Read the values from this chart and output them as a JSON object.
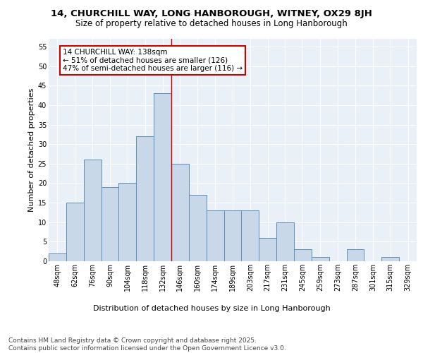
{
  "title": "14, CHURCHILL WAY, LONG HANBOROUGH, WITNEY, OX29 8JH",
  "subtitle": "Size of property relative to detached houses in Long Hanborough",
  "xlabel": "Distribution of detached houses by size in Long Hanborough",
  "ylabel": "Number of detached properties",
  "bar_labels": [
    "48sqm",
    "62sqm",
    "76sqm",
    "90sqm",
    "104sqm",
    "118sqm",
    "132sqm",
    "146sqm",
    "160sqm",
    "174sqm",
    "189sqm",
    "203sqm",
    "217sqm",
    "231sqm",
    "245sqm",
    "259sqm",
    "273sqm",
    "287sqm",
    "301sqm",
    "315sqm",
    "329sqm"
  ],
  "bar_values": [
    2,
    15,
    26,
    19,
    20,
    32,
    43,
    25,
    17,
    13,
    13,
    13,
    6,
    10,
    3,
    1,
    0,
    3,
    0,
    1,
    0
  ],
  "bar_color": "#c8d8e8",
  "bar_edge_color": "#5b8db8",
  "annotation_title": "14 CHURCHILL WAY: 138sqm",
  "annotation_line1": "← 51% of detached houses are smaller (126)",
  "annotation_line2": "47% of semi-detached houses are larger (116) →",
  "annotation_box_color": "#ffffff",
  "annotation_box_edge_color": "#cc0000",
  "vline_x": 6.5,
  "vline_color": "#cc0000",
  "ylim": [
    0,
    57
  ],
  "yticks": [
    0,
    5,
    10,
    15,
    20,
    25,
    30,
    35,
    40,
    45,
    50,
    55
  ],
  "background_color": "#eaf0f8",
  "footer_line1": "Contains HM Land Registry data © Crown copyright and database right 2025.",
  "footer_line2": "Contains public sector information licensed under the Open Government Licence v3.0.",
  "title_fontsize": 9.5,
  "subtitle_fontsize": 8.5,
  "xlabel_fontsize": 8,
  "ylabel_fontsize": 8,
  "tick_fontsize": 7,
  "annotation_fontsize": 7.5,
  "footer_fontsize": 6.5
}
